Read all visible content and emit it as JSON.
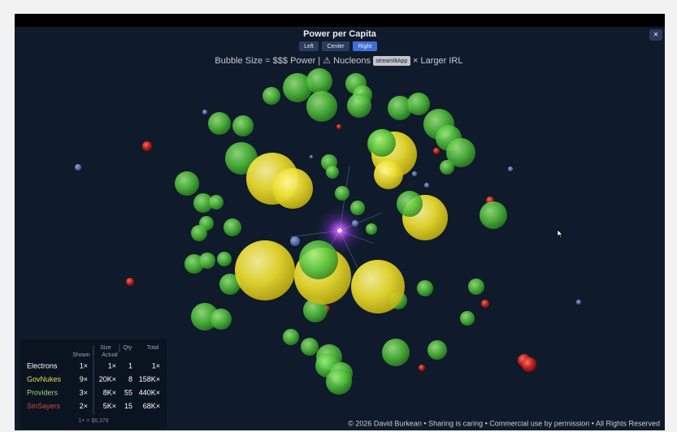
{
  "window": {
    "title": "Power per Capita",
    "close": "×",
    "view_buttons": [
      "Left",
      "Center",
      "Right"
    ],
    "active_button": 2,
    "caption_start": "Bubble Size = $$$ Power  |  ⚠ Nucleons",
    "tooltip": "streamlitApp",
    "caption_end": "× Larger IRL"
  },
  "legend_table": {
    "headers": {
      "size": "Size",
      "shown": "Shown",
      "actual": "Actual",
      "qty": "Qty",
      "total": "Total"
    },
    "rows": [
      {
        "name": "Electrons",
        "color": "#ffffff",
        "shown": "1×",
        "actual": "1×",
        "qty": 1,
        "total": "1×"
      },
      {
        "name": "GovNukes",
        "color": "#f2dc4a",
        "shown": "9×",
        "actual": "20K×",
        "qty": 8,
        "total": "158K×"
      },
      {
        "name": "Providers",
        "color": "#9ad872",
        "shown": "3×",
        "actual": "8K×",
        "qty": 55,
        "total": "440K×"
      },
      {
        "name": "SinSayers",
        "color": "#e2463c",
        "shown": "2×",
        "actual": "5K×",
        "qty": 15,
        "total": "68K×"
      }
    ],
    "footnote": "1× = $6,378"
  },
  "footer": {
    "copyright": "© 2026 David Burkean • Sharing is caring • Commercial use by permission • All Rights Reserved"
  }
}
